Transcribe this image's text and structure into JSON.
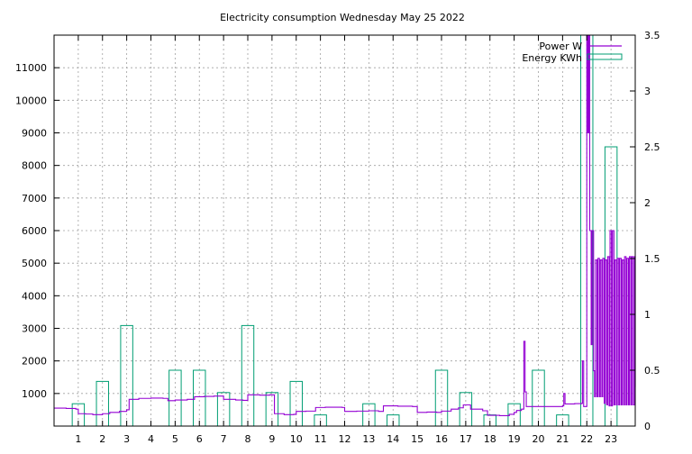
{
  "chart_data": {
    "type": "line",
    "title": "Electricity consumption Wednesday May 25 2022",
    "xlabel": "",
    "ylabel": "",
    "y2label": "",
    "xlim": [
      0,
      24
    ],
    "ylim": [
      0,
      12000
    ],
    "y2lim": [
      0,
      3.5
    ],
    "grid": true,
    "legend_position": "top-right",
    "xticks": [
      1,
      2,
      3,
      4,
      5,
      6,
      7,
      8,
      9,
      10,
      11,
      12,
      13,
      14,
      15,
      16,
      17,
      18,
      19,
      20,
      21,
      22,
      23
    ],
    "yticks": [
      1000,
      2000,
      3000,
      4000,
      5000,
      6000,
      7000,
      8000,
      9000,
      10000,
      11000
    ],
    "y2ticks": [
      0,
      0.5,
      1,
      1.5,
      2,
      2.5,
      3,
      3.5
    ],
    "series": [
      {
        "name": "Power W",
        "axis": "y",
        "color": "#9400d3",
        "style": "steps",
        "points": [
          [
            0,
            550
          ],
          [
            0.5,
            540
          ],
          [
            0.9,
            520
          ],
          [
            1.0,
            380
          ],
          [
            1.3,
            370
          ],
          [
            1.6,
            350
          ],
          [
            2.0,
            380
          ],
          [
            2.3,
            420
          ],
          [
            2.7,
            450
          ],
          [
            3.0,
            500
          ],
          [
            3.1,
            820
          ],
          [
            3.5,
            850
          ],
          [
            4.0,
            860
          ],
          [
            4.5,
            850
          ],
          [
            4.7,
            780
          ],
          [
            5.0,
            800
          ],
          [
            5.5,
            820
          ],
          [
            5.8,
            900
          ],
          [
            6.2,
            910
          ],
          [
            6.6,
            920
          ],
          [
            7.0,
            820
          ],
          [
            7.5,
            800
          ],
          [
            7.8,
            790
          ],
          [
            8.0,
            960
          ],
          [
            8.5,
            950
          ],
          [
            8.9,
            960
          ],
          [
            9.1,
            380
          ],
          [
            9.5,
            350
          ],
          [
            9.9,
            360
          ],
          [
            10.0,
            450
          ],
          [
            10.4,
            460
          ],
          [
            10.8,
            570
          ],
          [
            11.2,
            580
          ],
          [
            11.9,
            570
          ],
          [
            12.0,
            450
          ],
          [
            12.5,
            460
          ],
          [
            13.0,
            470
          ],
          [
            13.4,
            450
          ],
          [
            13.6,
            620
          ],
          [
            14.2,
            610
          ],
          [
            14.8,
            600
          ],
          [
            15.0,
            420
          ],
          [
            15.4,
            430
          ],
          [
            15.8,
            420
          ],
          [
            16.0,
            460
          ],
          [
            16.4,
            520
          ],
          [
            16.7,
            560
          ],
          [
            16.9,
            650
          ],
          [
            17.2,
            520
          ],
          [
            17.7,
            470
          ],
          [
            17.9,
            330
          ],
          [
            18.4,
            320
          ],
          [
            18.8,
            360
          ],
          [
            19.0,
            420
          ],
          [
            19.1,
            480
          ],
          [
            19.3,
            520
          ],
          [
            19.4,
            2600
          ],
          [
            19.45,
            1050
          ],
          [
            19.5,
            600
          ],
          [
            20.0,
            600
          ],
          [
            20.5,
            600
          ],
          [
            21.0,
            620
          ],
          [
            21.05,
            1000
          ],
          [
            21.1,
            680
          ],
          [
            21.5,
            690
          ],
          [
            21.8,
            700
          ],
          [
            21.82,
            2000
          ],
          [
            21.87,
            600
          ],
          [
            21.95,
            600
          ],
          [
            22.0,
            12000
          ],
          [
            22.04,
            9000
          ],
          [
            22.08,
            12000
          ],
          [
            22.12,
            6000
          ],
          [
            22.18,
            2500
          ],
          [
            22.22,
            6000
          ],
          [
            22.28,
            1700
          ],
          [
            22.32,
            900
          ],
          [
            22.36,
            5100
          ],
          [
            22.42,
            900
          ],
          [
            22.46,
            5150
          ],
          [
            22.52,
            900
          ],
          [
            22.56,
            5100
          ],
          [
            22.62,
            900
          ],
          [
            22.66,
            5150
          ],
          [
            22.72,
            700
          ],
          [
            22.76,
            5100
          ],
          [
            22.82,
            650
          ],
          [
            22.86,
            5200
          ],
          [
            22.92,
            620
          ],
          [
            22.96,
            6000
          ],
          [
            23.02,
            620
          ],
          [
            23.06,
            6000
          ],
          [
            23.12,
            650
          ],
          [
            23.16,
            5100
          ],
          [
            23.22,
            650
          ],
          [
            23.26,
            5150
          ],
          [
            23.32,
            650
          ],
          [
            23.36,
            5150
          ],
          [
            23.42,
            650
          ],
          [
            23.46,
            5100
          ],
          [
            23.52,
            650
          ],
          [
            23.56,
            5200
          ],
          [
            23.62,
            650
          ],
          [
            23.66,
            5150
          ],
          [
            23.72,
            650
          ],
          [
            23.76,
            5200
          ],
          [
            23.82,
            650
          ],
          [
            23.86,
            5200
          ],
          [
            23.92,
            650
          ],
          [
            23.97,
            5200
          ],
          [
            24.0,
            1200
          ]
        ]
      },
      {
        "name": "Energy KWh",
        "axis": "y2",
        "color": "#009e73",
        "style": "boxes",
        "bars": [
          [
            1,
            0.2
          ],
          [
            2,
            0.4
          ],
          [
            3,
            0.9
          ],
          [
            4,
            0
          ],
          [
            5,
            0.5
          ],
          [
            6,
            0.5
          ],
          [
            7,
            0.3
          ],
          [
            8,
            0.9
          ],
          [
            9,
            0.3
          ],
          [
            10,
            0.4
          ],
          [
            11,
            0.1
          ],
          [
            12,
            0
          ],
          [
            13,
            0.2
          ],
          [
            14,
            0.1
          ],
          [
            15,
            0
          ],
          [
            16,
            0.5
          ],
          [
            17,
            0.3
          ],
          [
            18,
            0.1
          ],
          [
            19,
            0.2
          ],
          [
            20,
            0.5
          ],
          [
            21,
            0.1
          ],
          [
            22,
            3.5
          ],
          [
            23,
            2.5
          ]
        ]
      }
    ]
  }
}
